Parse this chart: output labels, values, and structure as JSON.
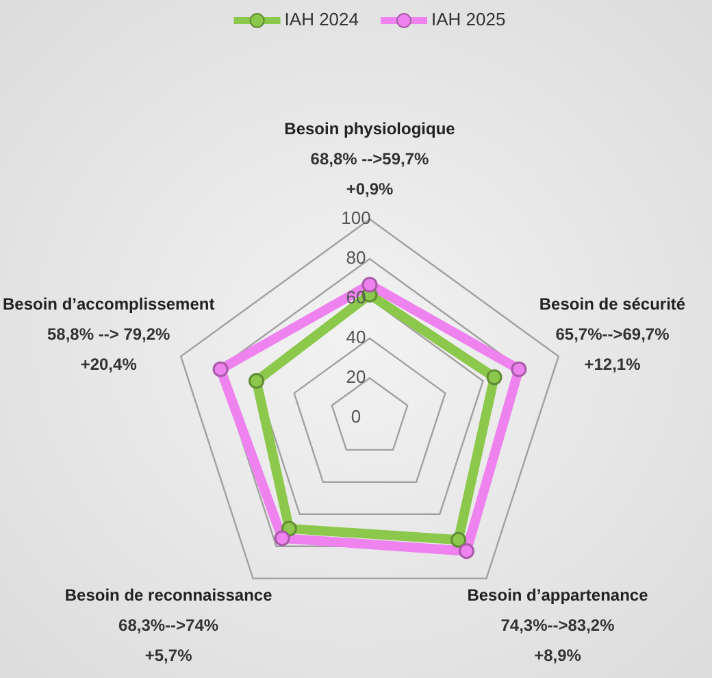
{
  "chart_data": {
    "type": "radar",
    "categories": [
      "Besoin physiologique",
      "Besoin de sécurité",
      "Besoin d’appartenance",
      "Besoin de reconnaissance",
      "Besoin d’accomplissement"
    ],
    "annotations": [
      "68,8% -->59,7%\n+0,9%",
      "65,7%-->69,7%\n+12,1%",
      "74,3%-->83,2%\n+8,9%",
      "68,3%-->74%\n+5,7%",
      "58,8% --> 79,2%\n+20,4%"
    ],
    "series": [
      {
        "name": "IAH 2024",
        "color": "#8cc84b",
        "values": [
          62,
          66,
          76,
          69,
          60
        ]
      },
      {
        "name": "IAH 2025",
        "color": "#ee82ee",
        "values": [
          67,
          79,
          83,
          75,
          79
        ]
      }
    ],
    "ylim": [
      0,
      100
    ],
    "yticks": [
      0,
      20,
      40,
      60,
      80,
      100
    ],
    "grid": true,
    "legend": "top",
    "marker": "circle",
    "line_style": "solid"
  }
}
